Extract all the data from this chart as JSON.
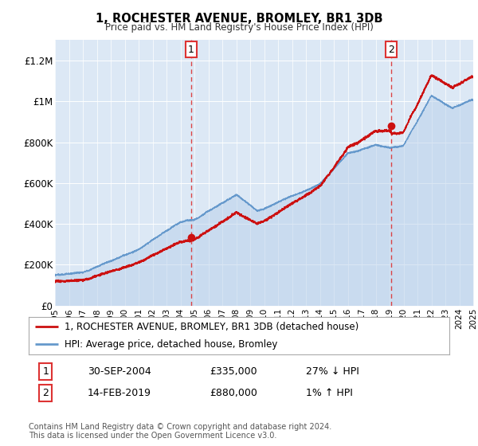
{
  "title": "1, ROCHESTER AVENUE, BROMLEY, BR1 3DB",
  "subtitle": "Price paid vs. HM Land Registry's House Price Index (HPI)",
  "ylim": [
    0,
    1300000
  ],
  "yticks": [
    0,
    200000,
    400000,
    600000,
    800000,
    1000000,
    1200000
  ],
  "ytick_labels": [
    "£0",
    "£200K",
    "£400K",
    "£600K",
    "£800K",
    "£1M",
    "£1.2M"
  ],
  "bg_color": "#ffffff",
  "plot_bg": "#dce8f5",
  "legend_entries": [
    "1, ROCHESTER AVENUE, BROMLEY, BR1 3DB (detached house)",
    "HPI: Average price, detached house, Bromley"
  ],
  "red_color": "#cc1111",
  "blue_color": "#6699cc",
  "vline_color": "#dd3333",
  "ann1_x": 2004.75,
  "ann1_y": 335000,
  "ann1_label": "1",
  "ann1_date": "30-SEP-2004",
  "ann1_price": "£335,000",
  "ann1_pct": "27% ↓ HPI",
  "ann2_x": 2019.12,
  "ann2_y": 880000,
  "ann2_label": "2",
  "ann2_date": "14-FEB-2019",
  "ann2_price": "£880,000",
  "ann2_pct": "1% ↑ HPI",
  "footer": "Contains HM Land Registry data © Crown copyright and database right 2024.\nThis data is licensed under the Open Government Licence v3.0.",
  "xmin": 1995,
  "xmax": 2025
}
